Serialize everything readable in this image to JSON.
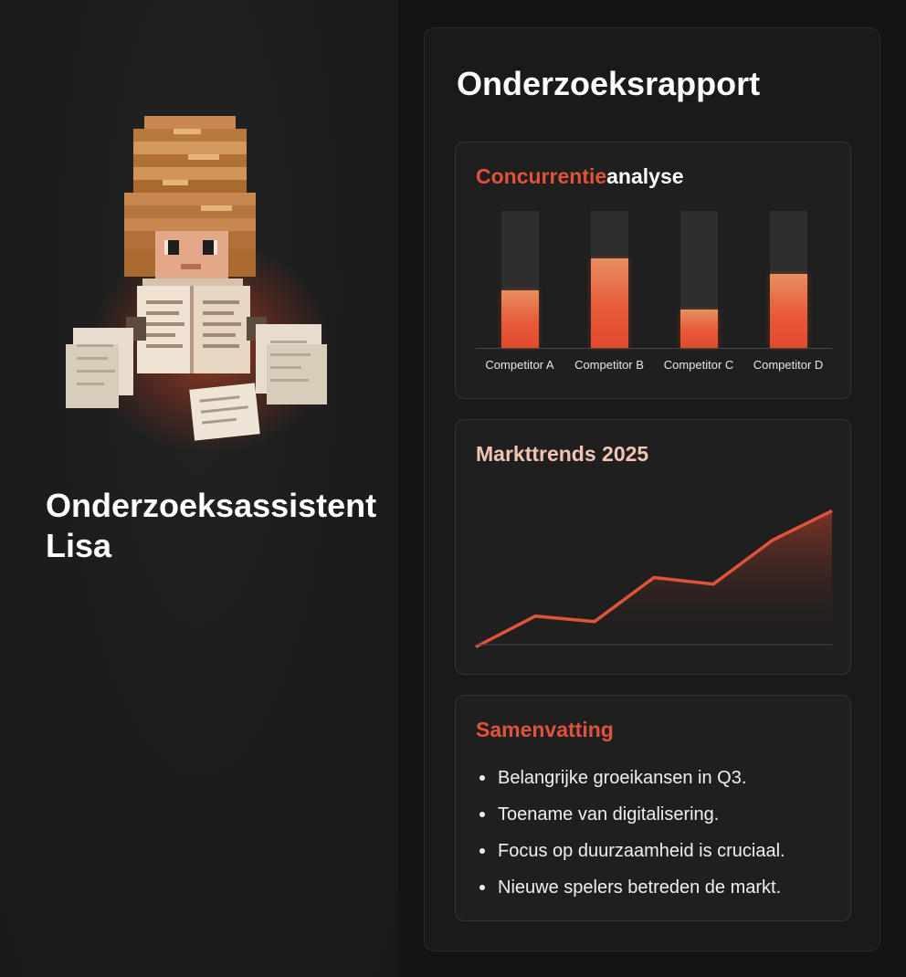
{
  "assistant": {
    "name": "Onderzoeksassistent Lisa",
    "avatar_icon": "pixel-researcher-reading-icon"
  },
  "report": {
    "title": "Onderzoeksrapport",
    "competitor_card": {
      "title_accent": "Concurrentie",
      "title_rest": "analyse"
    },
    "trend_card": {
      "title": "Markttrends 2025"
    },
    "summary_card": {
      "title": "Samenvatting",
      "items": [
        "Belangrijke groeikansen in Q3.",
        "Toename van digitalisering.",
        "Focus op duurzaamheid is cruciaal.",
        "Nieuwe spelers betreden de markt."
      ]
    }
  },
  "colors": {
    "accent": "#e0533a",
    "trend_title": "#f2c4b2",
    "panel": "#1a1a1a",
    "card": "#1f1f1f"
  },
  "chart_data": [
    {
      "type": "bar",
      "title": "Concurrentieanalyse",
      "categories": [
        "Competitor A",
        "Competitor B",
        "Competitor C",
        "Competitor D"
      ],
      "values": [
        42,
        65,
        28,
        54
      ],
      "ylim": [
        0,
        100
      ],
      "grid": false
    },
    {
      "type": "area",
      "title": "Markttrends 2025",
      "x": [
        1,
        2,
        3,
        4,
        5,
        6,
        7
      ],
      "values": [
        12,
        35,
        31,
        64,
        59,
        92,
        114
      ],
      "ylim": [
        0,
        130
      ],
      "grid": false
    }
  ]
}
